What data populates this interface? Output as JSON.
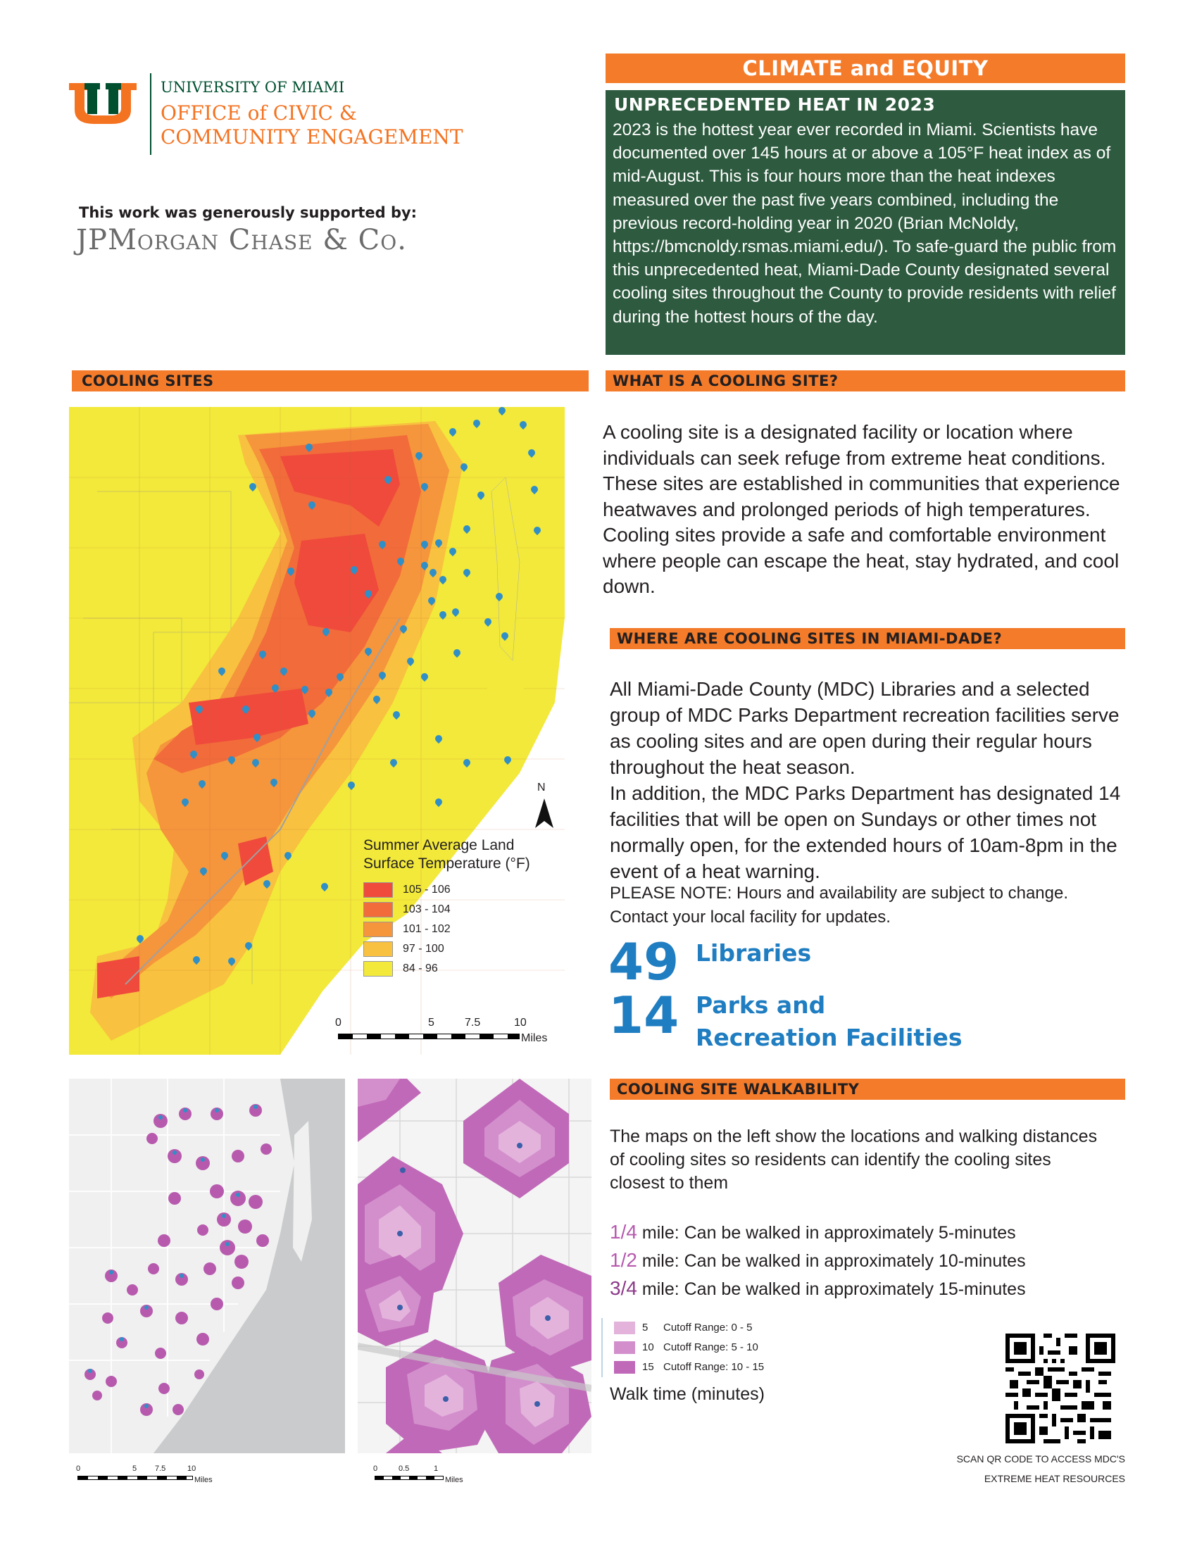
{
  "header": {
    "university": "UNIVERSITY OF MIAMI",
    "office_line1": "OFFICE of CIVIC &",
    "office_line2": "COMMUNITY ENGAGEMENT",
    "support_text": "This work was generously supported by:",
    "sponsor": "JPMorgan Chase & Co.",
    "um_logo_color_green": "#005030",
    "um_logo_color_orange": "#f47321"
  },
  "climate": {
    "title": "CLIMATE and EQUITY",
    "subtitle": "UNPRECEDENTED HEAT IN 2023",
    "body": "2023 is the hottest year ever recorded in Miami. Scientists have documented over 145 hours at or above a 105°F heat index as of mid-August. This is four hours more than the heat indexes measured over the past five years combined, including the previous record-holding year in 2020 (Brian McNoldy, https://bmcnoldy.rsmas.miami.edu/). To safe-guard the public from this unprecedented heat, Miami-Dade County designated several cooling sites throughout the County to provide residents with relief during the hottest hours of the day."
  },
  "cooling_sites": {
    "title": "COOLING SITES",
    "legend_title_line1": "Summer Average Land",
    "legend_title_line2": "Surface Temperature (°F)",
    "legend": [
      {
        "label": "105 - 106",
        "color": "#ef4a3c"
      },
      {
        "label": "103 - 104",
        "color": "#f26b3a"
      },
      {
        "label": "101 - 102",
        "color": "#f5953c"
      },
      {
        "label": "97 - 100",
        "color": "#f8c13f"
      },
      {
        "label": "84 - 96",
        "color": "#f2e93a"
      }
    ],
    "north_label": "N",
    "scale_ticks": [
      "0",
      "5",
      "7.5",
      "10"
    ],
    "scale_unit": "Miles"
  },
  "what_is": {
    "title": "WHAT IS A COOLING SITE?",
    "body": "A cooling site is a designated facility or location where individuals can seek refuge from extreme heat conditions. These sites are established in communities that experience heatwaves and prolonged periods of high temperatures. Cooling sites provide a safe and comfortable environment where people can escape the heat, stay hydrated, and cool down."
  },
  "where_are": {
    "title": "WHERE ARE COOLING SITES IN MIAMI-DADE?",
    "body1": "All Miami-Dade County (MDC) Libraries and a selected group of MDC Parks Department recreation facilities serve as cooling sites and are open during their regular hours throughout the heat season.",
    "body2": "In addition, the MDC Parks Department has designated 14 facilities that will be open on Sundays or other times not normally open, for the extended hours of 10am-8pm in the event of a heat warning.",
    "note": "PLEASE NOTE: Hours and availability are subject to change. Contact your local facility for updates.",
    "stat1_num": "49",
    "stat1_label": "Libraries",
    "stat2_num": "14",
    "stat2_label_line1": "Parks and",
    "stat2_label_line2": "Recreation Facilities"
  },
  "walkability": {
    "title": "COOLING SITE WALKABILITY",
    "body": "The maps on the left show the locations and walking distances of cooling sites so residents can identify the cooling sites closest to them",
    "rows": [
      {
        "frac": "1/4",
        "text": " mile: Can be walked in approximately 5-minutes"
      },
      {
        "frac": "1/2",
        "text": " mile: Can be walked in approximately 10-minutes"
      },
      {
        "frac": "3/4",
        "text": " mile: Can be walked in approximately 15-minutes"
      }
    ],
    "legend": [
      {
        "value": "5",
        "label": "Cutoff Range: 0 - 5",
        "color": "#e3b3dc"
      },
      {
        "value": "10",
        "label": "Cutoff Range: 5 - 10",
        "color": "#d38fcc"
      },
      {
        "value": "15",
        "label": "Cutoff Range: 10 - 15",
        "color": "#c069b8"
      }
    ],
    "legend_title": "Walk time (minutes)",
    "map1_scale_ticks": [
      "0",
      "5",
      "7.5",
      "10"
    ],
    "map1_scale_unit": "Miles",
    "map2_scale_ticks": [
      "0",
      "0.5",
      "1"
    ],
    "map2_scale_unit": "Miles"
  },
  "qr": {
    "caption_line1": "SCAN QR CODE TO ACCESS MDC'S",
    "caption_line2": "EXTREME HEAT RESOURCES"
  }
}
